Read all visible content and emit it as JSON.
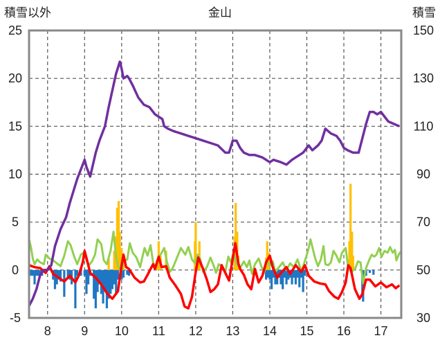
{
  "chart_data": {
    "type": "line",
    "title": "金山",
    "left_axis_label": "積雪以外",
    "right_axis_label": "積雪",
    "left_ylim": [
      -5,
      25
    ],
    "left_yticks": [
      -5,
      0,
      5,
      10,
      15,
      20,
      25
    ],
    "right_ylim": [
      30,
      150
    ],
    "right_yticks": [
      30,
      50,
      70,
      90,
      110,
      130,
      150
    ],
    "xlim": [
      7.5,
      17.55
    ],
    "xticks": [
      8,
      9,
      10,
      11,
      12,
      13,
      14,
      15,
      16,
      17
    ],
    "grid": "vertical-dashed-and-horizontal-dashed",
    "colors": {
      "snow_depth": "#7030a0",
      "temperature": "#ff0000",
      "precipitation": "#ffc000",
      "snow_change": "#1f77c4",
      "other": "#92d050",
      "frame": "#888888",
      "grid": "#555555"
    },
    "snow_depth_axis": "right",
    "snow_depth": [
      [
        7.5,
        35
      ],
      [
        7.6,
        38
      ],
      [
        7.7,
        42
      ],
      [
        7.8,
        48
      ],
      [
        7.9,
        50
      ],
      [
        8.0,
        50
      ],
      [
        8.1,
        52
      ],
      [
        8.2,
        60
      ],
      [
        8.35,
        67
      ],
      [
        8.5,
        72
      ],
      [
        8.6,
        78
      ],
      [
        8.8,
        88
      ],
      [
        8.9,
        92
      ],
      [
        9.0,
        96
      ],
      [
        9.05,
        93
      ],
      [
        9.15,
        89
      ],
      [
        9.3,
        99
      ],
      [
        9.4,
        104
      ],
      [
        9.55,
        110
      ],
      [
        9.65,
        118
      ],
      [
        9.75,
        125
      ],
      [
        9.85,
        132
      ],
      [
        9.95,
        137
      ],
      [
        10.0,
        134
      ],
      [
        10.05,
        130
      ],
      [
        10.15,
        131
      ],
      [
        10.2,
        130
      ],
      [
        10.3,
        127
      ],
      [
        10.45,
        122
      ],
      [
        10.6,
        119
      ],
      [
        10.75,
        118
      ],
      [
        10.9,
        115
      ],
      [
        11.0,
        114
      ],
      [
        11.1,
        113
      ],
      [
        11.15,
        110
      ],
      [
        11.25,
        109
      ],
      [
        11.4,
        108
      ],
      [
        11.6,
        107
      ],
      [
        11.8,
        106
      ],
      [
        12.0,
        105
      ],
      [
        12.2,
        104
      ],
      [
        12.4,
        103
      ],
      [
        12.6,
        102
      ],
      [
        12.8,
        99
      ],
      [
        12.9,
        99
      ],
      [
        13.0,
        104
      ],
      [
        13.1,
        104
      ],
      [
        13.2,
        101
      ],
      [
        13.3,
        99
      ],
      [
        13.45,
        98
      ],
      [
        13.6,
        98
      ],
      [
        13.8,
        97
      ],
      [
        14.0,
        95
      ],
      [
        14.1,
        96
      ],
      [
        14.3,
        95
      ],
      [
        14.45,
        94
      ],
      [
        14.6,
        96
      ],
      [
        14.8,
        98
      ],
      [
        14.9,
        99
      ],
      [
        15.05,
        102
      ],
      [
        15.15,
        100
      ],
      [
        15.3,
        102
      ],
      [
        15.4,
        104
      ],
      [
        15.5,
        109
      ],
      [
        15.65,
        107
      ],
      [
        15.8,
        106
      ],
      [
        15.9,
        104
      ],
      [
        16.0,
        101
      ],
      [
        16.1,
        100
      ],
      [
        16.25,
        99
      ],
      [
        16.4,
        99
      ],
      [
        16.5,
        105
      ],
      [
        16.6,
        111
      ],
      [
        16.7,
        116
      ],
      [
        16.8,
        116
      ],
      [
        16.9,
        115
      ],
      [
        17.0,
        116
      ],
      [
        17.1,
        114
      ],
      [
        17.2,
        112
      ],
      [
        17.35,
        111
      ],
      [
        17.5,
        110
      ]
    ],
    "temperature": [
      [
        7.5,
        0.5
      ],
      [
        7.65,
        0.3
      ],
      [
        7.8,
        0.2
      ],
      [
        7.95,
        -0.3
      ],
      [
        8.05,
        0.4
      ],
      [
        8.15,
        -0.4
      ],
      [
        8.3,
        -0.8
      ],
      [
        8.45,
        -1.2
      ],
      [
        8.6,
        -0.6
      ],
      [
        8.75,
        -1.3
      ],
      [
        8.85,
        -0.5
      ],
      [
        8.95,
        0.8
      ],
      [
        9.0,
        2.0
      ],
      [
        9.08,
        0.8
      ],
      [
        9.15,
        -0.3
      ],
      [
        9.3,
        -0.8
      ],
      [
        9.45,
        -1.5
      ],
      [
        9.6,
        -2.4
      ],
      [
        9.75,
        -3.0
      ],
      [
        9.9,
        -2.2
      ],
      [
        9.97,
        -0.3
      ],
      [
        10.0,
        0.5
      ],
      [
        10.05,
        1.6
      ],
      [
        10.12,
        0.3
      ],
      [
        10.2,
        0.1
      ],
      [
        10.35,
        -0.8
      ],
      [
        10.5,
        -1.3
      ],
      [
        10.6,
        -1.2
      ],
      [
        10.7,
        -0.5
      ],
      [
        10.78,
        0.1
      ],
      [
        10.85,
        0.6
      ],
      [
        10.9,
        0.1
      ],
      [
        11.0,
        1.4
      ],
      [
        11.08,
        0.3
      ],
      [
        11.2,
        0.4
      ],
      [
        11.3,
        -0.8
      ],
      [
        11.45,
        -1.6
      ],
      [
        11.6,
        -2.5
      ],
      [
        11.7,
        -3.8
      ],
      [
        11.8,
        -4.0
      ],
      [
        11.9,
        -2.8
      ],
      [
        12.0,
        -0.2
      ],
      [
        12.07,
        1.3
      ],
      [
        12.2,
        0.1
      ],
      [
        12.3,
        -1.0
      ],
      [
        12.4,
        -2.3
      ],
      [
        12.5,
        -2.0
      ],
      [
        12.6,
        -1.5
      ],
      [
        12.7,
        0.5
      ],
      [
        12.8,
        -0.3
      ],
      [
        12.9,
        -1.1
      ],
      [
        13.0,
        1.2
      ],
      [
        13.07,
        2.8
      ],
      [
        13.15,
        0.7
      ],
      [
        13.2,
        0.1
      ],
      [
        13.3,
        -0.5
      ],
      [
        13.4,
        -1.5
      ],
      [
        13.5,
        -2.0
      ],
      [
        13.6,
        0.1
      ],
      [
        13.7,
        -1.3
      ],
      [
        13.8,
        -0.6
      ],
      [
        13.9,
        0.8
      ],
      [
        14.0,
        1.5
      ],
      [
        14.08,
        0.3
      ],
      [
        14.2,
        -0.8
      ],
      [
        14.3,
        -0.3
      ],
      [
        14.45,
        0.3
      ],
      [
        14.55,
        -0.4
      ],
      [
        14.7,
        0.5
      ],
      [
        14.85,
        -0.2
      ],
      [
        14.95,
        0.5
      ],
      [
        15.05,
        -0.6
      ],
      [
        15.2,
        -1.2
      ],
      [
        15.35,
        -1.4
      ],
      [
        15.5,
        -1.5
      ],
      [
        15.6,
        -2.2
      ],
      [
        15.75,
        -2.8
      ],
      [
        15.85,
        -3.0
      ],
      [
        15.95,
        -2.3
      ],
      [
        16.05,
        -1.3
      ],
      [
        16.12,
        0.5
      ],
      [
        16.18,
        0.2
      ],
      [
        16.3,
        -2.0
      ],
      [
        16.42,
        -3.0
      ],
      [
        16.5,
        -2.5
      ],
      [
        16.6,
        -1.0
      ],
      [
        16.7,
        -1.0
      ],
      [
        16.85,
        -1.7
      ],
      [
        17.0,
        -1.3
      ],
      [
        17.15,
        -1.8
      ],
      [
        17.3,
        -1.5
      ],
      [
        17.4,
        -1.9
      ],
      [
        17.5,
        -1.6
      ]
    ],
    "other_series": [
      [
        7.5,
        3.2
      ],
      [
        7.55,
        2.4
      ],
      [
        7.6,
        1.2
      ],
      [
        7.65,
        0.6
      ],
      [
        7.72,
        1.1
      ],
      [
        7.8,
        0.8
      ],
      [
        7.9,
        0.6
      ],
      [
        7.95,
        1.6
      ],
      [
        8.05,
        1.2
      ],
      [
        8.15,
        1.0
      ],
      [
        8.25,
        0.7
      ],
      [
        8.35,
        0.4
      ],
      [
        8.45,
        1.5
      ],
      [
        8.55,
        3.0
      ],
      [
        8.62,
        2.6
      ],
      [
        8.72,
        1.4
      ],
      [
        8.8,
        0.6
      ],
      [
        8.9,
        1.6
      ],
      [
        8.97,
        1.8
      ],
      [
        9.05,
        1.0
      ],
      [
        9.12,
        0.5
      ],
      [
        9.2,
        0.9
      ],
      [
        9.28,
        1.6
      ],
      [
        9.35,
        3.2
      ],
      [
        9.45,
        2.7
      ],
      [
        9.52,
        1.0
      ],
      [
        9.6,
        0.6
      ],
      [
        9.7,
        2.0
      ],
      [
        9.78,
        4.0
      ],
      [
        9.85,
        1.3
      ],
      [
        9.92,
        0.3
      ],
      [
        10.0,
        0.0
      ],
      [
        10.05,
        0.9
      ],
      [
        10.15,
        1.1
      ],
      [
        10.22,
        2.8
      ],
      [
        10.3,
        1.8
      ],
      [
        10.4,
        1.3
      ],
      [
        10.5,
        0.3
      ],
      [
        10.55,
        1.2
      ],
      [
        10.62,
        2.3
      ],
      [
        10.7,
        1.5
      ],
      [
        10.78,
        2.6
      ],
      [
        10.85,
        0.8
      ],
      [
        10.92,
        0.2
      ],
      [
        10.98,
        1.2
      ],
      [
        11.05,
        1.6
      ],
      [
        11.15,
        2.3
      ],
      [
        11.22,
        0.9
      ],
      [
        11.3,
        -0.2
      ],
      [
        11.38,
        0.2
      ],
      [
        11.6,
        2.3
      ],
      [
        11.65,
        2.0
      ],
      [
        11.72,
        1.6
      ],
      [
        11.8,
        2.4
      ],
      [
        11.9,
        1.1
      ],
      [
        11.98,
        0.7
      ],
      [
        12.05,
        1.6
      ],
      [
        12.12,
        1.2
      ],
      [
        12.2,
        -0.2
      ],
      [
        12.3,
        0.3
      ],
      [
        12.4,
        1.3
      ],
      [
        12.48,
        0.5
      ],
      [
        12.55,
        -0.3
      ],
      [
        12.62,
        0.6
      ],
      [
        12.7,
        0.4
      ],
      [
        12.8,
        -0.2
      ],
      [
        12.88,
        1.4
      ],
      [
        12.95,
        0.8
      ],
      [
        13.02,
        1.8
      ],
      [
        13.1,
        0.6
      ],
      [
        13.2,
        0.2
      ],
      [
        13.3,
        0.9
      ],
      [
        13.38,
        0.3
      ],
      [
        13.45,
        1.0
      ],
      [
        13.52,
        -0.4
      ],
      [
        13.6,
        0.6
      ],
      [
        13.7,
        1.2
      ],
      [
        13.78,
        0.3
      ],
      [
        13.85,
        -0.3
      ],
      [
        13.92,
        1.0
      ],
      [
        14.0,
        0.4
      ],
      [
        14.08,
        0.9
      ],
      [
        14.15,
        -0.2
      ],
      [
        14.25,
        0.3
      ],
      [
        14.35,
        0.8
      ],
      [
        14.45,
        0.0
      ],
      [
        14.55,
        0.7
      ],
      [
        14.65,
        0.3
      ],
      [
        14.75,
        1.1
      ],
      [
        14.85,
        -0.1
      ],
      [
        14.92,
        0.6
      ],
      [
        15.0,
        1.6
      ],
      [
        15.05,
        2.3
      ],
      [
        15.1,
        3.2
      ],
      [
        15.15,
        2.4
      ],
      [
        15.22,
        1.3
      ],
      [
        15.3,
        0.4
      ],
      [
        15.38,
        1.1
      ],
      [
        15.45,
        2.5
      ],
      [
        15.5,
        0.6
      ],
      [
        15.58,
        0.5
      ],
      [
        15.65,
        0.8
      ],
      [
        15.72,
        2.0
      ],
      [
        15.8,
        1.5
      ],
      [
        15.88,
        0.8
      ],
      [
        15.95,
        1.8
      ],
      [
        16.05,
        2.3
      ],
      [
        16.12,
        0.2
      ],
      [
        16.2,
        -0.2
      ],
      [
        16.3,
        0.1
      ],
      [
        16.38,
        0.9
      ],
      [
        16.45,
        0.8
      ],
      [
        16.52,
        -1.4
      ],
      [
        16.6,
        0.2
      ],
      [
        16.68,
        1.0
      ],
      [
        16.75,
        1.6
      ],
      [
        16.82,
        1.4
      ],
      [
        16.88,
        1.6
      ],
      [
        16.95,
        2.3
      ],
      [
        17.02,
        1.4
      ],
      [
        17.1,
        2.0
      ],
      [
        17.18,
        1.8
      ],
      [
        17.25,
        2.4
      ],
      [
        17.32,
        1.8
      ],
      [
        17.38,
        2.1
      ],
      [
        17.42,
        1.0
      ],
      [
        17.48,
        1.6
      ],
      [
        17.55,
        2.0
      ]
    ],
    "precipitation_bars": [
      [
        9.65,
        1.2
      ],
      [
        9.8,
        2.0
      ],
      [
        9.85,
        3.5
      ],
      [
        9.88,
        6.5
      ],
      [
        9.92,
        7.2
      ],
      [
        9.95,
        4.0
      ],
      [
        10.0,
        2.3
      ],
      [
        10.05,
        0.8
      ],
      [
        10.95,
        1.0
      ],
      [
        11.0,
        3.0
      ],
      [
        11.05,
        1.5
      ],
      [
        11.2,
        2.0
      ],
      [
        11.98,
        3.0
      ],
      [
        12.0,
        5.0
      ],
      [
        12.05,
        1.5
      ],
      [
        12.1,
        3.0
      ],
      [
        13.05,
        3.5
      ],
      [
        13.08,
        7.0
      ],
      [
        13.12,
        4.0
      ],
      [
        13.15,
        1.5
      ],
      [
        13.9,
        1.3
      ],
      [
        13.93,
        3.0
      ],
      [
        13.97,
        1.8
      ],
      [
        16.15,
        3.0
      ],
      [
        16.18,
        9.0
      ],
      [
        16.22,
        4.0
      ],
      [
        16.25,
        1.5
      ]
    ],
    "snow_change_bars": [
      [
        7.5,
        -0.6
      ],
      [
        7.55,
        -0.6
      ],
      [
        7.6,
        -0.6
      ],
      [
        7.65,
        -1.5
      ],
      [
        7.7,
        -0.6
      ],
      [
        7.75,
        -0.6
      ],
      [
        7.8,
        -0.6
      ],
      [
        7.85,
        -0.6
      ],
      [
        8.15,
        -1.0
      ],
      [
        8.2,
        -2.0
      ],
      [
        8.25,
        -1.5
      ],
      [
        8.3,
        -1.0
      ],
      [
        8.35,
        -1.2
      ],
      [
        8.45,
        -2.8
      ],
      [
        8.55,
        -0.8
      ],
      [
        8.6,
        -1.0
      ],
      [
        8.65,
        -1.5
      ],
      [
        8.75,
        -4.0
      ],
      [
        8.8,
        -0.6
      ],
      [
        8.9,
        -0.6
      ],
      [
        9.0,
        -0.6
      ],
      [
        9.05,
        -2.5
      ],
      [
        9.1,
        -1.5
      ],
      [
        9.15,
        -0.6
      ],
      [
        9.25,
        -3.0
      ],
      [
        9.3,
        -4.0
      ],
      [
        9.35,
        -2.3
      ],
      [
        9.4,
        -1.5
      ],
      [
        9.45,
        -2.5
      ],
      [
        9.5,
        -3.5
      ],
      [
        9.55,
        -2.0
      ],
      [
        9.6,
        -4.0
      ],
      [
        9.65,
        -3.0
      ],
      [
        9.7,
        -2.5
      ],
      [
        9.75,
        -2.0
      ],
      [
        9.8,
        -1.5
      ],
      [
        9.85,
        -2.5
      ],
      [
        9.9,
        -1.0
      ],
      [
        10.0,
        -1.0
      ],
      [
        10.05,
        -0.8
      ],
      [
        10.15,
        -0.5
      ],
      [
        10.2,
        -0.6
      ],
      [
        13.9,
        -1.0
      ],
      [
        13.95,
        -0.8
      ],
      [
        14.0,
        -1.0
      ],
      [
        14.05,
        -2.0
      ],
      [
        14.1,
        -0.8
      ],
      [
        14.15,
        -1.5
      ],
      [
        14.2,
        -1.5
      ],
      [
        14.25,
        -0.8
      ],
      [
        14.3,
        -1.5
      ],
      [
        14.35,
        -2.0
      ],
      [
        14.4,
        -0.8
      ],
      [
        14.45,
        -1.5
      ],
      [
        14.5,
        -1.0
      ],
      [
        14.55,
        -0.8
      ],
      [
        14.6,
        -1.5
      ],
      [
        14.65,
        -0.8
      ],
      [
        14.7,
        -1.5
      ],
      [
        14.75,
        -0.8
      ],
      [
        14.8,
        -1.8
      ],
      [
        14.85,
        -0.8
      ],
      [
        14.9,
        -2.3
      ],
      [
        14.95,
        -0.6
      ],
      [
        16.5,
        -2.5
      ],
      [
        16.52,
        -3.3
      ],
      [
        16.6,
        -0.6
      ],
      [
        16.7,
        -0.3
      ],
      [
        16.8,
        -0.5
      ]
    ]
  }
}
